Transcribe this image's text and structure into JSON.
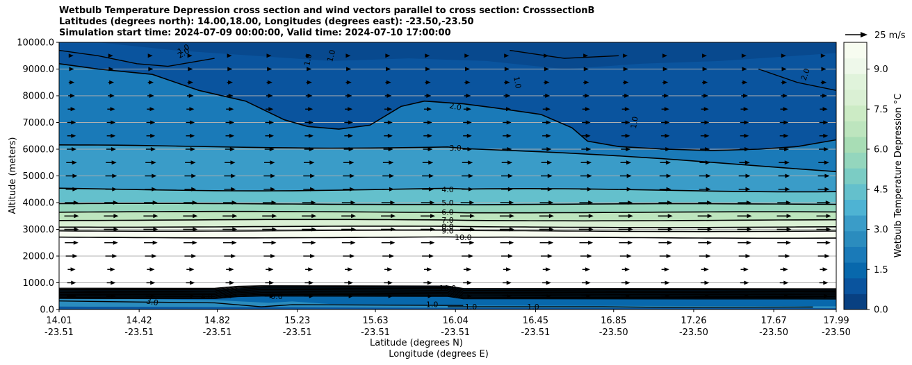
{
  "title": {
    "line1": "Wetbulb Temperature Depression cross section and wind vectors parallel to cross section: CrosssectionB",
    "line2": "Latitudes (degrees north): 14.00,18.00, Longitudes (degrees east): -23.50,-23.50",
    "line3": "Simulation start time: 2024-07-09 00:00:00, Valid time: 2024-07-10 17:00:00"
  },
  "chart_data": {
    "type": "heatmap",
    "ylabel": "Altitude (meters)",
    "xlabel_lat": "Latitude (degrees N)",
    "xlabel_lon": "Longitude (degrees E)",
    "ylim": [
      0,
      10000
    ],
    "y_ticks": [
      "0.0",
      "1000.0",
      "2000.0",
      "3000.0",
      "4000.0",
      "5000.0",
      "6000.0",
      "7000.0",
      "8000.0",
      "9000.0",
      "10000.0"
    ],
    "x_ticks": [
      {
        "lat": "14.01",
        "lon": "-23.51"
      },
      {
        "lat": "14.42",
        "lon": "-23.51"
      },
      {
        "lat": "14.82",
        "lon": "-23.51"
      },
      {
        "lat": "15.23",
        "lon": "-23.51"
      },
      {
        "lat": "15.63",
        "lon": "-23.51"
      },
      {
        "lat": "16.04",
        "lon": "-23.51"
      },
      {
        "lat": "16.45",
        "lon": "-23.51"
      },
      {
        "lat": "16.85",
        "lon": "-23.50"
      },
      {
        "lat": "17.26",
        "lon": "-23.50"
      },
      {
        "lat": "17.67",
        "lon": "-23.50"
      },
      {
        "lat": "17.99",
        "lon": "-23.50"
      }
    ],
    "xlim": [
      14.01,
      17.99
    ],
    "grid": "horizontal",
    "colorbar": {
      "label": "Wetbulb Temperature Depression °C",
      "range": [
        0,
        10
      ],
      "ticks": [
        "0.0",
        "1.5",
        "3.0",
        "4.5",
        "6.0",
        "7.5",
        "9.0"
      ],
      "colors": [
        "#084081",
        "#0a549e",
        "#0868ac",
        "#1a7ab8",
        "#2b8cbe",
        "#3a9cc8",
        "#4eb3d3",
        "#64c0cc",
        "#7bccc4",
        "#94d6bd",
        "#a8ddb5",
        "#bde5be",
        "#ccebc5",
        "#daf0d4",
        "#e0f3db",
        "#eef8ea",
        "#f7fcf0"
      ]
    },
    "quiver_key": {
      "label": "25 m/s",
      "speed": 25
    },
    "contours": [
      {
        "level": 1.0,
        "label": "1.0"
      },
      {
        "level": 2.0,
        "label": "2.0"
      },
      {
        "level": 3.0,
        "label": "3.0"
      },
      {
        "level": 4.0,
        "label": "4.0"
      },
      {
        "level": 5.0,
        "label": "5.0"
      },
      {
        "level": 6.0,
        "label": "6.0"
      },
      {
        "level": 7.0,
        "label": "7.0"
      },
      {
        "level": 8.0,
        "label": "8.0"
      },
      {
        "level": 9.0,
        "label": "9.0"
      },
      {
        "level": 10.0,
        "label": "10.0"
      }
    ],
    "contour_altitudes": [
      {
        "level": 2.0,
        "alt": 9200
      },
      {
        "level": 3.0,
        "alt": 6100
      },
      {
        "level": 4.0,
        "alt": 4500
      },
      {
        "level": 5.0,
        "alt": 3950
      },
      {
        "level": 6.0,
        "alt": 3650
      },
      {
        "level": 7.0,
        "alt": 3350
      },
      {
        "level": 8.0,
        "alt": 3100
      },
      {
        "level": 9.0,
        "alt": 2950
      },
      {
        "level": 10.0,
        "alt": 2700
      }
    ],
    "wind_u_levels": [
      {
        "alt": 500,
        "u": 10
      },
      {
        "alt": 1000,
        "u": 9
      },
      {
        "alt": 1500,
        "u": 8
      },
      {
        "alt": 2000,
        "u": 12
      },
      {
        "alt": 2500,
        "u": 14
      },
      {
        "alt": 3000,
        "u": 15
      },
      {
        "alt": 3500,
        "u": 15
      },
      {
        "alt": 4000,
        "u": 14
      },
      {
        "alt": 4500,
        "u": 12
      },
      {
        "alt": 5000,
        "u": 12
      },
      {
        "alt": 5500,
        "u": 11
      },
      {
        "alt": 6000,
        "u": 10
      },
      {
        "alt": 6500,
        "u": 9
      },
      {
        "alt": 7000,
        "u": 9
      },
      {
        "alt": 7500,
        "u": 8
      },
      {
        "alt": 8000,
        "u": 7
      },
      {
        "alt": 8500,
        "u": 6
      },
      {
        "alt": 9000,
        "u": 5
      },
      {
        "alt": 9500,
        "u": 4
      }
    ]
  },
  "contour_label_text": [
    "1.0",
    "1.0",
    "1.0",
    "1.0",
    "1.0",
    "1.0",
    "2.0",
    "2.0",
    "2.0",
    "3.0",
    "4.0",
    "5.0",
    "6.0",
    "7.0",
    "8.0",
    "9.0",
    "10.0",
    "3.0",
    "4.0",
    "0.0",
    "10.0",
    "1.0",
    "1.0"
  ]
}
